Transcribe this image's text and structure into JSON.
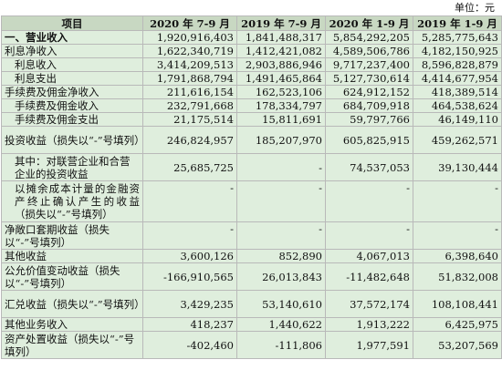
{
  "unit_label": "单位：元",
  "columns": [
    "项目",
    "2020 年 7-9 月",
    "2019 年 7-9 月",
    "2020 年 1-9 月",
    "2019 年 1-9 月"
  ],
  "rows": [
    {
      "label": "一、营业收入",
      "values": [
        "1,920,916,403",
        "1,841,488,317",
        "5,854,292,205",
        "5,285,775,643"
      ]
    },
    {
      "label": "利息净收入",
      "values": [
        "1,622,340,719",
        "1,412,421,082",
        "4,589,506,786",
        "4,182,150,925"
      ]
    },
    {
      "label": "利息收入",
      "values": [
        "3,414,209,513",
        "2,903,886,946",
        "9,717,237,400",
        "8,596,828,879"
      ]
    },
    {
      "label": "利息支出",
      "values": [
        "1,791,868,794",
        "1,491,465,864",
        "5,127,730,614",
        "4,414,677,954"
      ]
    },
    {
      "label": "手续费及佣金净收入",
      "values": [
        "211,616,154",
        "162,523,106",
        "624,912,152",
        "418,389,514"
      ]
    },
    {
      "label": "手续费及佣金收入",
      "values": [
        "232,791,668",
        "178,334,797",
        "684,709,918",
        "464,538,624"
      ]
    },
    {
      "label": "手续费及佣金支出",
      "values": [
        "21,175,514",
        "15,811,691",
        "59,797,766",
        "46,149,110"
      ]
    },
    {
      "label": "投资收益（损失以“-”号填列）",
      "values": [
        "246,824,957",
        "185,207,970",
        "605,825,915",
        "459,262,571"
      ]
    },
    {
      "label": "其中：对联营企业和合营企业的投资收益",
      "values": [
        "25,685,725",
        "-",
        "74,537,053",
        "39,130,444"
      ]
    },
    {
      "label": "以摊余成本计量的金融资产终止确认产生的收益（损失以“-”号填列）",
      "values": [
        "-",
        "-",
        "-",
        "-"
      ]
    },
    {
      "label": "净敞口套期收益（损失以“-”号填列）",
      "values": [
        "-",
        "-",
        "-",
        "-"
      ]
    },
    {
      "label": "其他收益",
      "values": [
        "3,600,126",
        "852,890",
        "4,067,013",
        "6,398,640"
      ]
    },
    {
      "label": "公允价值变动收益（损失以“-”号填列）",
      "values": [
        "-166,910,565",
        "26,013,843",
        "-11,482,648",
        "51,832,008"
      ]
    },
    {
      "label": "汇兑收益（损失以“-”号填列）",
      "values": [
        "3,429,235",
        "53,140,610",
        "37,572,174",
        "108,108,441"
      ]
    },
    {
      "label": "其他业务收入",
      "values": [
        "418,237",
        "1,440,622",
        "1,913,222",
        "6,425,975"
      ]
    },
    {
      "label": "资产处置收益（损失以“-”号填列）",
      "values": [
        "-402,460",
        "-111,806",
        "1,977,591",
        "53,207,569"
      ]
    }
  ]
}
